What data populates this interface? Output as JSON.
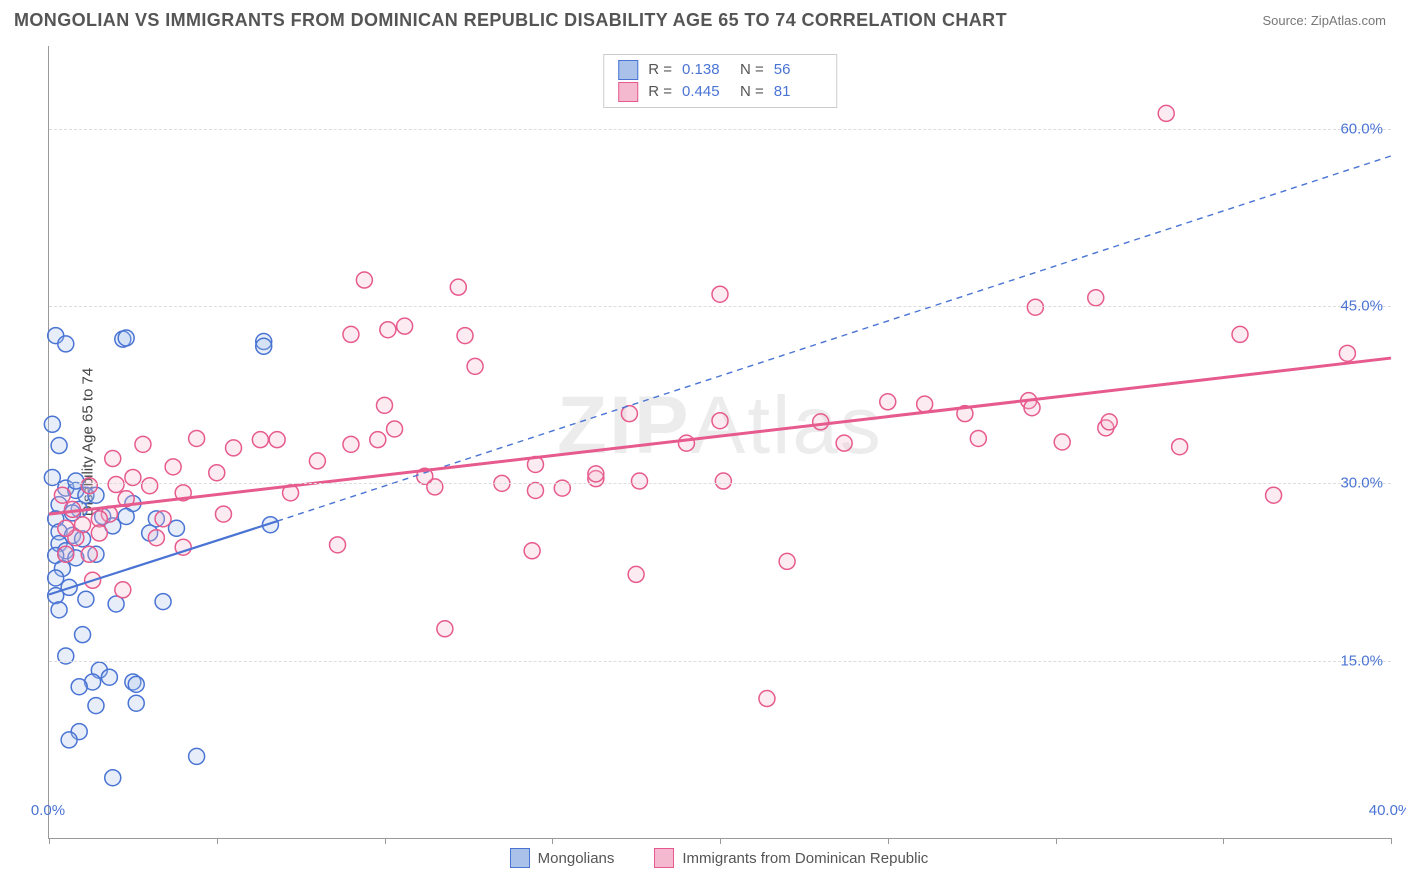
{
  "header": {
    "title": "MONGOLIAN VS IMMIGRANTS FROM DOMINICAN REPUBLIC DISABILITY AGE 65 TO 74 CORRELATION CHART",
    "source": "Source: ZipAtlas.com"
  },
  "watermark": {
    "bold": "ZIP",
    "thin": "Atlas"
  },
  "chart": {
    "type": "scatter",
    "ylabel": "Disability Age 65 to 74",
    "background_color": "#ffffff",
    "grid_color": "#dddddd",
    "axis_color": "#999999",
    "tick_label_color": "#4a74d4",
    "xlim": [
      0,
      40
    ],
    "ylim": [
      0,
      67
    ],
    "xticks": [
      0,
      5,
      10,
      15,
      20,
      25,
      30,
      35,
      40
    ],
    "xtick_labels": {
      "0": "0.0%",
      "40": "40.0%"
    },
    "yticks": [
      15,
      30,
      45,
      60
    ],
    "ytick_labels": {
      "15": "15.0%",
      "30": "30.0%",
      "45": "45.0%",
      "60": "60.0%"
    },
    "marker_radius": 8,
    "marker_stroke_width": 1.5,
    "marker_fill_opacity": 0.28,
    "series": [
      {
        "name": "Mongolians",
        "color_stroke": "#4a74d4",
        "color_fill": "#aac2ea",
        "R": "0.138",
        "N": "56",
        "trend_solid": {
          "x1": 0.0,
          "y1": 20.6,
          "x2": 6.8,
          "y2": 26.8
        },
        "trend_dashed": {
          "x1": 6.8,
          "y1": 26.8,
          "x2": 40.0,
          "y2": 57.7
        },
        "trend_width": 2.2,
        "points": [
          [
            0.2,
            42.5
          ],
          [
            2.2,
            42.2
          ],
          [
            2.3,
            42.3
          ],
          [
            0.5,
            41.8
          ],
          [
            6.4,
            42.0
          ],
          [
            6.4,
            41.6
          ],
          [
            0.1,
            35.0
          ],
          [
            0.3,
            33.2
          ],
          [
            0.1,
            30.5
          ],
          [
            0.5,
            29.6
          ],
          [
            0.8,
            29.4
          ],
          [
            1.1,
            29.0
          ],
          [
            1.4,
            29.0
          ],
          [
            0.3,
            28.2
          ],
          [
            0.9,
            27.8
          ],
          [
            0.7,
            27.5
          ],
          [
            0.2,
            27.0
          ],
          [
            1.6,
            27.2
          ],
          [
            2.5,
            28.3
          ],
          [
            2.3,
            27.2
          ],
          [
            3.2,
            27.0
          ],
          [
            3.0,
            25.8
          ],
          [
            3.8,
            26.2
          ],
          [
            6.6,
            26.5
          ],
          [
            0.3,
            25.9
          ],
          [
            0.7,
            25.6
          ],
          [
            1.0,
            25.3
          ],
          [
            0.3,
            24.9
          ],
          [
            0.5,
            24.3
          ],
          [
            0.2,
            23.9
          ],
          [
            0.8,
            23.7
          ],
          [
            0.4,
            22.8
          ],
          [
            0.2,
            22.0
          ],
          [
            0.6,
            21.2
          ],
          [
            0.2,
            20.5
          ],
          [
            0.3,
            19.3
          ],
          [
            1.1,
            20.2
          ],
          [
            2.0,
            19.8
          ],
          [
            3.4,
            20.0
          ],
          [
            1.0,
            17.2
          ],
          [
            0.5,
            15.4
          ],
          [
            1.5,
            14.2
          ],
          [
            1.8,
            13.6
          ],
          [
            1.3,
            13.2
          ],
          [
            0.9,
            12.8
          ],
          [
            2.5,
            13.2
          ],
          [
            2.6,
            13.0
          ],
          [
            1.4,
            11.2
          ],
          [
            2.6,
            11.4
          ],
          [
            0.9,
            9.0
          ],
          [
            0.6,
            8.3
          ],
          [
            4.4,
            6.9
          ],
          [
            1.9,
            5.1
          ],
          [
            1.9,
            26.4
          ],
          [
            0.8,
            30.2
          ],
          [
            1.4,
            24.0
          ]
        ]
      },
      {
        "name": "Immigrants from Dominican Republic",
        "color_stroke": "#e75a8d",
        "color_fill": "#f4b9ce",
        "R": "0.445",
        "N": "81",
        "trend_solid": {
          "x1": 0.0,
          "y1": 27.4,
          "x2": 40.0,
          "y2": 40.6
        },
        "trend_dashed": null,
        "trend_width": 3,
        "points": [
          [
            33.3,
            61.3
          ],
          [
            38.7,
            41.0
          ],
          [
            35.5,
            42.6
          ],
          [
            33.7,
            33.1
          ],
          [
            36.5,
            29.0
          ],
          [
            31.2,
            45.7
          ],
          [
            31.5,
            34.7
          ],
          [
            31.6,
            35.2
          ],
          [
            30.2,
            33.5
          ],
          [
            29.2,
            37.0
          ],
          [
            29.3,
            36.4
          ],
          [
            29.4,
            44.9
          ],
          [
            27.3,
            35.9
          ],
          [
            27.7,
            33.8
          ],
          [
            26.1,
            36.7
          ],
          [
            25.0,
            36.9
          ],
          [
            23.7,
            33.4
          ],
          [
            23.0,
            35.2
          ],
          [
            22.0,
            23.4
          ],
          [
            21.4,
            11.8
          ],
          [
            20.0,
            46.0
          ],
          [
            20.0,
            35.3
          ],
          [
            20.1,
            30.2
          ],
          [
            19.0,
            33.4
          ],
          [
            17.5,
            22.3
          ],
          [
            17.6,
            30.2
          ],
          [
            17.3,
            35.9
          ],
          [
            16.3,
            30.4
          ],
          [
            16.3,
            30.8
          ],
          [
            15.3,
            29.6
          ],
          [
            14.4,
            24.3
          ],
          [
            14.5,
            31.6
          ],
          [
            14.5,
            29.4
          ],
          [
            13.5,
            30.0
          ],
          [
            12.4,
            42.5
          ],
          [
            12.2,
            46.6
          ],
          [
            12.7,
            39.9
          ],
          [
            11.8,
            17.7
          ],
          [
            11.5,
            29.7
          ],
          [
            11.2,
            30.6
          ],
          [
            10.6,
            43.3
          ],
          [
            10.1,
            43.0
          ],
          [
            10.3,
            34.6
          ],
          [
            10.0,
            36.6
          ],
          [
            9.8,
            33.7
          ],
          [
            9.0,
            33.3
          ],
          [
            9.0,
            42.6
          ],
          [
            9.4,
            47.2
          ],
          [
            8.0,
            31.9
          ],
          [
            8.6,
            24.8
          ],
          [
            7.2,
            29.2
          ],
          [
            6.8,
            33.7
          ],
          [
            6.3,
            33.7
          ],
          [
            5.5,
            33.0
          ],
          [
            5.2,
            27.4
          ],
          [
            5.0,
            30.9
          ],
          [
            4.4,
            33.8
          ],
          [
            4.0,
            29.2
          ],
          [
            4.0,
            24.6
          ],
          [
            3.4,
            27.0
          ],
          [
            3.0,
            29.8
          ],
          [
            3.2,
            25.4
          ],
          [
            2.8,
            33.3
          ],
          [
            2.5,
            30.5
          ],
          [
            2.3,
            28.7
          ],
          [
            2.0,
            29.9
          ],
          [
            1.8,
            27.4
          ],
          [
            1.5,
            27.0
          ],
          [
            1.5,
            25.8
          ],
          [
            1.2,
            29.8
          ],
          [
            1.0,
            26.5
          ],
          [
            1.2,
            24.0
          ],
          [
            0.8,
            25.4
          ],
          [
            0.7,
            27.8
          ],
          [
            0.5,
            26.2
          ],
          [
            0.4,
            29.0
          ],
          [
            0.5,
            24.0
          ],
          [
            1.3,
            21.8
          ],
          [
            2.2,
            21.0
          ],
          [
            1.9,
            32.1
          ],
          [
            3.7,
            31.4
          ]
        ]
      }
    ]
  },
  "legend_bottom": {
    "items": [
      {
        "label": "Mongolians",
        "fill": "#aac2ea",
        "stroke": "#4a74d4"
      },
      {
        "label": "Immigrants from Dominican Republic",
        "fill": "#f4b9ce",
        "stroke": "#e75a8d"
      }
    ]
  }
}
